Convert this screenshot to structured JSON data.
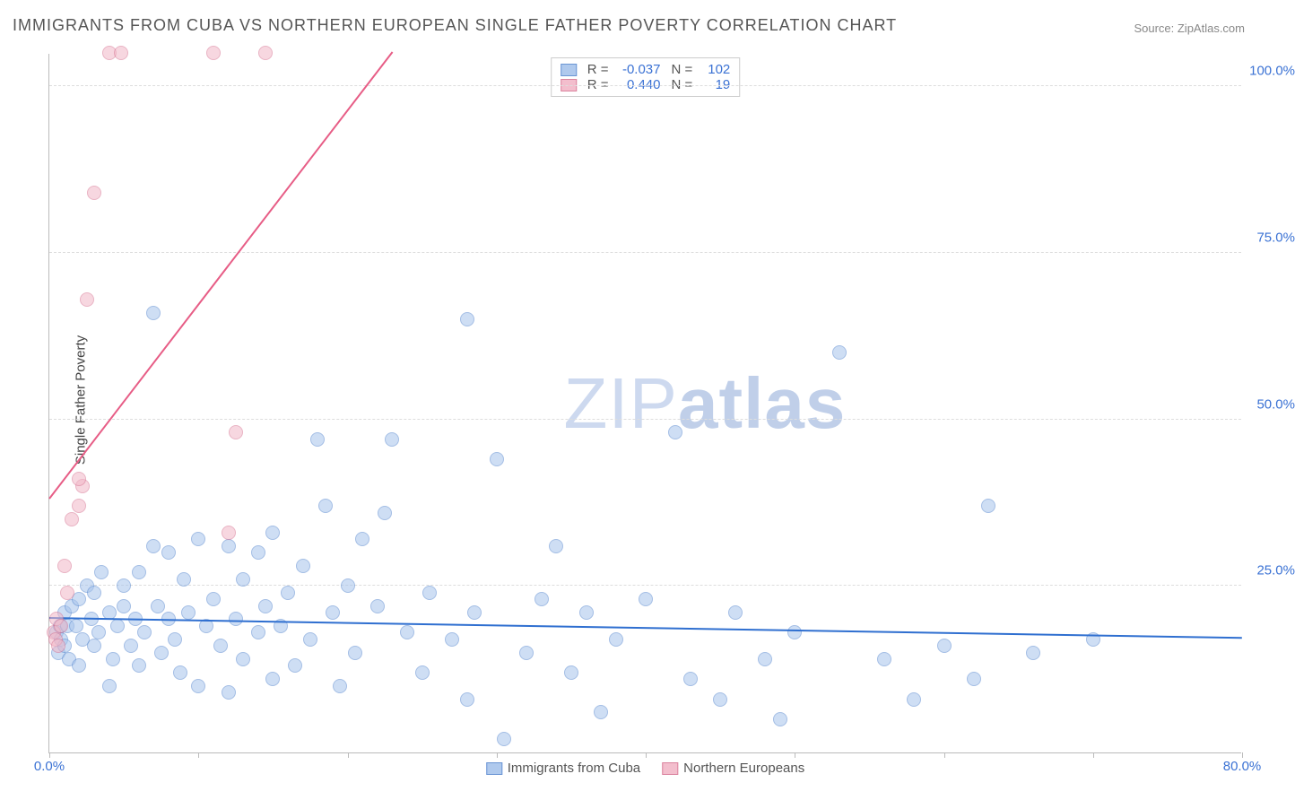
{
  "title": "IMMIGRANTS FROM CUBA VS NORTHERN EUROPEAN SINGLE FATHER POVERTY CORRELATION CHART",
  "source_label": "Source: ",
  "source_name": "ZipAtlas.com",
  "y_axis_title": "Single Father Poverty",
  "watermark_thin": "ZIP",
  "watermark_bold": "atlas",
  "chart": {
    "type": "scatter",
    "background_color": "#ffffff",
    "grid_color": "#dddddd",
    "axis_color": "#bbbbbb",
    "xlim": [
      0,
      80
    ],
    "ylim": [
      0,
      105
    ],
    "x_ticks": [
      0,
      10,
      20,
      30,
      40,
      50,
      60,
      70,
      80
    ],
    "x_tick_labels": {
      "0": "0.0%",
      "80": "80.0%"
    },
    "y_ticks": [
      25,
      50,
      75,
      100
    ],
    "y_tick_labels": {
      "25": "25.0%",
      "50": "50.0%",
      "75": "75.0%",
      "100": "100.0%"
    },
    "marker_radius": 8,
    "marker_stroke_width": 1,
    "series": [
      {
        "id": "cuba",
        "label": "Immigrants from Cuba",
        "fill": "#a7c4ec",
        "stroke": "#5a8ad0",
        "fill_opacity": 0.55,
        "r_value": "-0.037",
        "n_value": "102",
        "trendline": {
          "color": "#2f6fd0",
          "width": 2,
          "x1": 0,
          "y1": 20,
          "x2": 80,
          "y2": 17
        },
        "points": [
          [
            0.5,
            18
          ],
          [
            0.7,
            19
          ],
          [
            0.8,
            17
          ],
          [
            0.6,
            15
          ],
          [
            1,
            21
          ],
          [
            1,
            16
          ],
          [
            1.2,
            19
          ],
          [
            1.3,
            14
          ],
          [
            1.5,
            22
          ],
          [
            1.8,
            19
          ],
          [
            2,
            13
          ],
          [
            2,
            23
          ],
          [
            2.2,
            17
          ],
          [
            2.5,
            25
          ],
          [
            2.8,
            20
          ],
          [
            3,
            16
          ],
          [
            3,
            24
          ],
          [
            3.3,
            18
          ],
          [
            3.5,
            27
          ],
          [
            4,
            21
          ],
          [
            4,
            10
          ],
          [
            4.3,
            14
          ],
          [
            4.6,
            19
          ],
          [
            5,
            22
          ],
          [
            5,
            25
          ],
          [
            5.5,
            16
          ],
          [
            5.8,
            20
          ],
          [
            6,
            13
          ],
          [
            6,
            27
          ],
          [
            6.4,
            18
          ],
          [
            7,
            66
          ],
          [
            7,
            31
          ],
          [
            7.3,
            22
          ],
          [
            7.5,
            15
          ],
          [
            8,
            20
          ],
          [
            8,
            30
          ],
          [
            8.4,
            17
          ],
          [
            8.8,
            12
          ],
          [
            9,
            26
          ],
          [
            9.3,
            21
          ],
          [
            10,
            32
          ],
          [
            10,
            10
          ],
          [
            10.5,
            19
          ],
          [
            11,
            23
          ],
          [
            11.5,
            16
          ],
          [
            12,
            31
          ],
          [
            12,
            9
          ],
          [
            12.5,
            20
          ],
          [
            13,
            26
          ],
          [
            13,
            14
          ],
          [
            14,
            30
          ],
          [
            14,
            18
          ],
          [
            14.5,
            22
          ],
          [
            15,
            33
          ],
          [
            15,
            11
          ],
          [
            15.5,
            19
          ],
          [
            16,
            24
          ],
          [
            16.5,
            13
          ],
          [
            17,
            28
          ],
          [
            17.5,
            17
          ],
          [
            18,
            47
          ],
          [
            18.5,
            37
          ],
          [
            19,
            21
          ],
          [
            19.5,
            10
          ],
          [
            20,
            25
          ],
          [
            20.5,
            15
          ],
          [
            21,
            32
          ],
          [
            22,
            22
          ],
          [
            22.5,
            36
          ],
          [
            23,
            47
          ],
          [
            24,
            18
          ],
          [
            25,
            12
          ],
          [
            25.5,
            24
          ],
          [
            27,
            17
          ],
          [
            28,
            65
          ],
          [
            28,
            8
          ],
          [
            28.5,
            21
          ],
          [
            30,
            44
          ],
          [
            30.5,
            2
          ],
          [
            32,
            15
          ],
          [
            33,
            23
          ],
          [
            34,
            31
          ],
          [
            35,
            12
          ],
          [
            36,
            21
          ],
          [
            37,
            6
          ],
          [
            38,
            17
          ],
          [
            40,
            23
          ],
          [
            42,
            48
          ],
          [
            43,
            11
          ],
          [
            45,
            8
          ],
          [
            46,
            21
          ],
          [
            48,
            14
          ],
          [
            49,
            5
          ],
          [
            50,
            18
          ],
          [
            53,
            60
          ],
          [
            56,
            14
          ],
          [
            58,
            8
          ],
          [
            60,
            16
          ],
          [
            62,
            11
          ],
          [
            63,
            37
          ],
          [
            66,
            15
          ],
          [
            70,
            17
          ]
        ]
      },
      {
        "id": "northern_europeans",
        "label": "Northern Europeans",
        "fill": "#f2b8c8",
        "stroke": "#d87694",
        "fill_opacity": 0.55,
        "r_value": "0.440",
        "n_value": "19",
        "trendline": {
          "color": "#e75d86",
          "width": 2,
          "x1": 0,
          "y1": 38,
          "x2": 23,
          "y2": 105
        },
        "points": [
          [
            0.3,
            18
          ],
          [
            0.4,
            17
          ],
          [
            0.5,
            20
          ],
          [
            0.6,
            16
          ],
          [
            0.8,
            19
          ],
          [
            1.0,
            28
          ],
          [
            1.2,
            24
          ],
          [
            1.5,
            35
          ],
          [
            2,
            37
          ],
          [
            2.2,
            40
          ],
          [
            2.5,
            68
          ],
          [
            3,
            84
          ],
          [
            4,
            105
          ],
          [
            4.8,
            105
          ],
          [
            11,
            105
          ],
          [
            12.5,
            48
          ],
          [
            14.5,
            105
          ],
          [
            12,
            33
          ],
          [
            2,
            41
          ]
        ]
      }
    ]
  },
  "legend_top": {
    "r_label": "R =",
    "n_label": "N ="
  },
  "legend_bottom": {}
}
